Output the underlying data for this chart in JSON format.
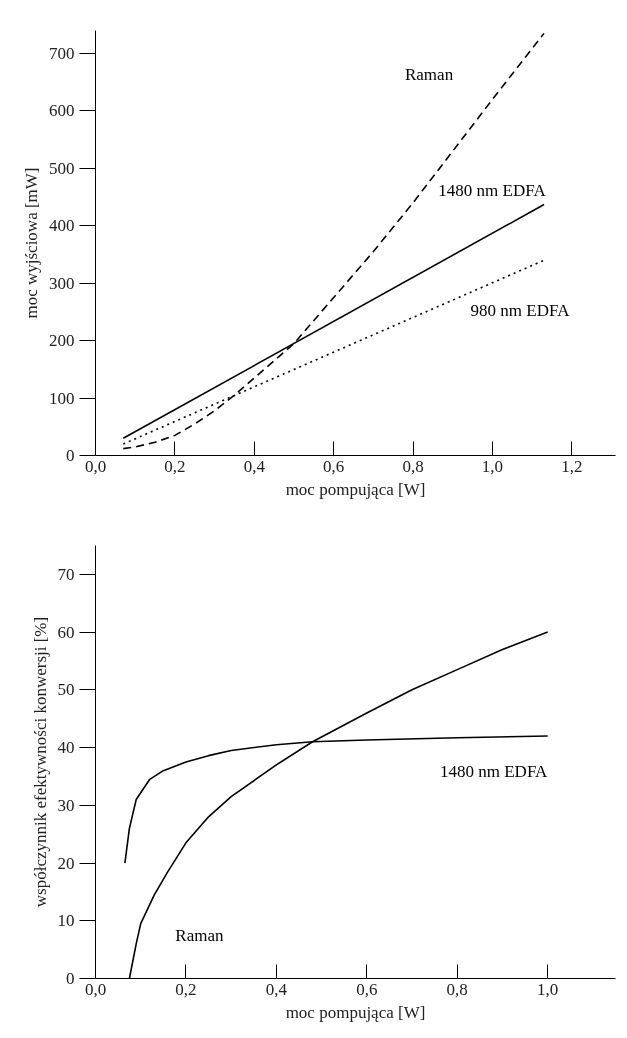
{
  "chart_data": [
    {
      "type": "line",
      "xlabel": "moc pompująca [W]",
      "ylabel": "moc wyjściowa [mW]",
      "xlim": [
        0,
        1.31
      ],
      "ylim": [
        0,
        740
      ],
      "xticks": [
        {
          "value": 0,
          "label": "0,0"
        },
        {
          "value": 0.2,
          "label": "0,2"
        },
        {
          "value": 0.4,
          "label": "0,4"
        },
        {
          "value": 0.6,
          "label": "0,6"
        },
        {
          "value": 0.8,
          "label": "0,8"
        },
        {
          "value": 1.0,
          "label": "1,0"
        },
        {
          "value": 1.2,
          "label": "1,2"
        }
      ],
      "yticks": [
        0,
        100,
        200,
        300,
        400,
        500,
        600,
        700
      ],
      "grid": false,
      "series": [
        {
          "name": "Raman",
          "color": "#000000",
          "line_style": "dashed",
          "x": [
            0.07,
            0.1,
            0.15,
            0.2,
            0.25,
            0.3,
            0.35,
            0.4,
            0.5,
            0.6,
            0.7,
            0.8,
            0.9,
            1.0,
            1.13
          ],
          "values": [
            12,
            15,
            23,
            35,
            55,
            78,
            105,
            135,
            195,
            275,
            355,
            440,
            530,
            620,
            735
          ]
        },
        {
          "name": "1480 nm EDFA",
          "color": "#000000",
          "line_style": "solid",
          "x": [
            0.07,
            1.13
          ],
          "values": [
            30,
            437
          ]
        },
        {
          "name": "980 nm EDFA",
          "color": "#000000",
          "line_style": "dotted",
          "x": [
            0.07,
            1.13
          ],
          "values": [
            20,
            340
          ]
        }
      ]
    },
    {
      "type": "line",
      "xlabel": "moc pompująca [W]",
      "ylabel": "współczynnik efektywności konwersji [%]",
      "xlim": [
        0,
        1.15
      ],
      "ylim": [
        0,
        75
      ],
      "xticks": [
        {
          "value": 0,
          "label": "0,0"
        },
        {
          "value": 0.2,
          "label": "0,2"
        },
        {
          "value": 0.4,
          "label": "0,4"
        },
        {
          "value": 0.6,
          "label": "0,6"
        },
        {
          "value": 0.8,
          "label": "0,8"
        },
        {
          "value": 1.0,
          "label": "1,0"
        }
      ],
      "yticks": [
        0,
        10,
        20,
        30,
        40,
        50,
        60,
        70
      ],
      "grid": false,
      "series": [
        {
          "name": "1480 nm EDFA",
          "color": "#000000",
          "line_style": "solid",
          "x": [
            0.065,
            0.075,
            0.09,
            0.12,
            0.15,
            0.2,
            0.25,
            0.3,
            0.4,
            0.48,
            0.6,
            0.8,
            1.0
          ],
          "values": [
            20,
            26,
            31,
            34.5,
            36,
            37.5,
            38.6,
            39.5,
            40.5,
            41,
            41.3,
            41.7,
            42
          ]
        },
        {
          "name": "Raman",
          "color": "#000000",
          "line_style": "solid",
          "x": [
            0.075,
            0.09,
            0.1,
            0.13,
            0.16,
            0.2,
            0.25,
            0.3,
            0.4,
            0.48,
            0.6,
            0.7,
            0.8,
            0.9,
            1.0
          ],
          "values": [
            0,
            6,
            9.5,
            14.5,
            18.5,
            23.5,
            28,
            31.5,
            37,
            41,
            46,
            50,
            53.5,
            57,
            60
          ]
        }
      ]
    }
  ]
}
